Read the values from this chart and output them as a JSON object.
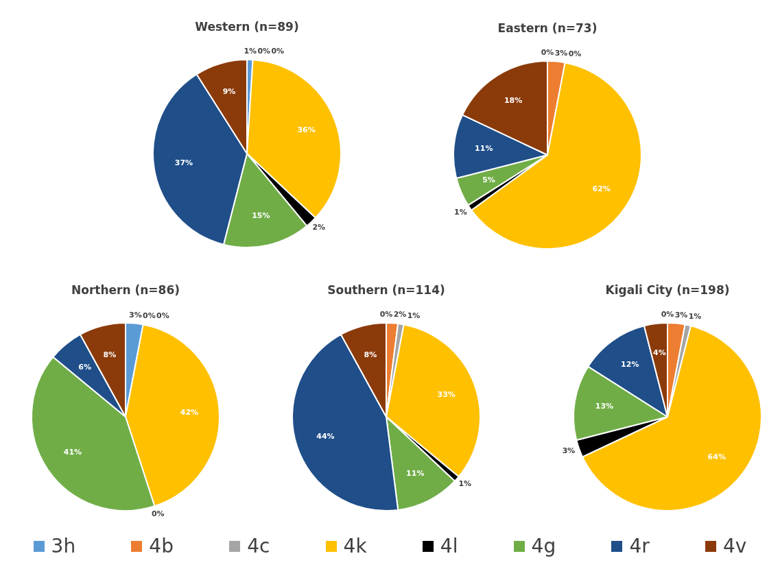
{
  "chart_data": [
    {
      "type": "pie",
      "title": "Western (n=89)",
      "categories": [
        "3h",
        "4b",
        "4c",
        "4k",
        "4l",
        "4g",
        "4r",
        "4v"
      ],
      "values": [
        1,
        0,
        0,
        36,
        2,
        15,
        37,
        9
      ],
      "value_labels": [
        "1%",
        "0%",
        "0%",
        "36%",
        "2%",
        "15%",
        "37%",
        "9%"
      ],
      "colors": [
        "#5b9bd5",
        "#ed7d31",
        "#a5a5a5",
        "#ffc000",
        "#000000",
        "#70ad47",
        "#1f4e89",
        "#8b3a0a"
      ],
      "legend": "bottom"
    },
    {
      "type": "pie",
      "title": "Eastern (n=73)",
      "categories": [
        null,
        null,
        null,
        null,
        null,
        null,
        null,
        null
      ],
      "values": [
        0,
        3,
        0,
        62,
        1,
        5,
        11,
        18
      ],
      "value_labels": [
        "0%",
        "3%",
        "0%",
        "62%",
        "1%",
        "5%",
        "11%",
        "18%"
      ],
      "colors": [
        "#5b9bd5",
        "#ed7d31",
        "#a5a5a5",
        "#ffc000",
        "#000000",
        "#70ad47",
        "#1f4e89",
        "#8b3a0a"
      ]
    },
    {
      "type": "pie",
      "title": "Northern (n=86)",
      "categories": [
        null,
        null,
        null,
        null,
        null,
        null,
        null,
        null
      ],
      "values": [
        3,
        0,
        0,
        42,
        0,
        41,
        6,
        8
      ],
      "value_labels": [
        "3%",
        "0%",
        "0%",
        "42%",
        "0%",
        "41%",
        "6%",
        "8%"
      ],
      "colors": [
        "#5b9bd5",
        "#ed7d31",
        "#a5a5a5",
        "#ffc000",
        "#000000",
        "#70ad47",
        "#1f4e89",
        "#8b3a0a"
      ]
    },
    {
      "type": "pie",
      "title": "Southern (n=114)",
      "categories": [
        null,
        null,
        null,
        null,
        null,
        null,
        null,
        null
      ],
      "values": [
        0,
        2,
        1,
        33,
        1,
        11,
        44,
        8
      ],
      "value_labels": [
        "0%",
        "2%",
        "1%",
        "33%",
        "1%",
        "11%",
        "44%",
        "8%"
      ],
      "colors": [
        "#5b9bd5",
        "#ed7d31",
        "#a5a5a5",
        "#ffc000",
        "#000000",
        "#70ad47",
        "#1f4e89",
        "#8b3a0a"
      ]
    },
    {
      "type": "pie",
      "title": "Kigali City (n=198)",
      "categories": [
        null,
        null,
        null,
        null,
        null,
        null,
        null,
        null
      ],
      "values": [
        0,
        3,
        1,
        64,
        3,
        13,
        12,
        4
      ],
      "value_labels": [
        "0%",
        "3%",
        "1%",
        "64%",
        "3%",
        "13%",
        "12%",
        "4%"
      ],
      "colors": [
        "#5b9bd5",
        "#ed7d31",
        "#a5a5a5",
        "#ffc000",
        "#000000",
        "#70ad47",
        "#1f4e89",
        "#8b3a0a"
      ]
    }
  ]
}
